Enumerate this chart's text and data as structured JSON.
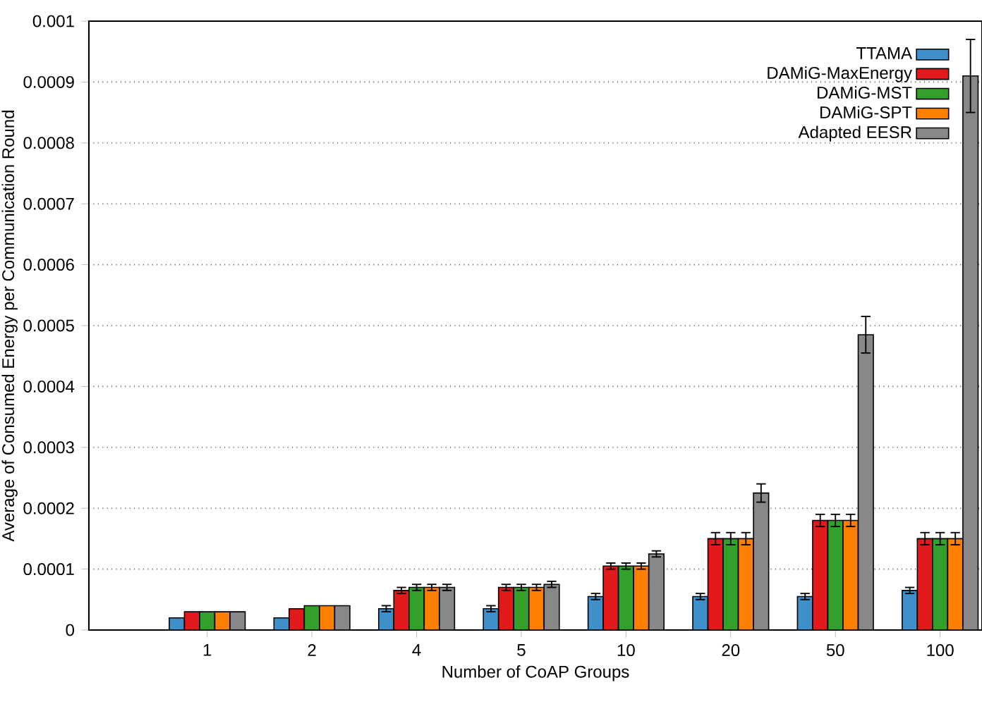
{
  "chart_data": {
    "type": "bar",
    "xlabel": "Number of CoAP Groups",
    "ylabel": "Average of Consumed Energy per Communication Round",
    "categories": [
      "1",
      "2",
      "4",
      "5",
      "10",
      "20",
      "50",
      "100"
    ],
    "ylim": [
      0,
      0.001
    ],
    "yticks": [
      0,
      0.0001,
      0.0002,
      0.0003,
      0.0004,
      0.0005,
      0.0006,
      0.0007,
      0.0008,
      0.0009,
      0.001
    ],
    "grid": "y",
    "legend": "top right",
    "series": [
      {
        "name": "TTAMA",
        "color": "#3f8fcb",
        "values": [
          2e-05,
          2e-05,
          3.5e-05,
          3.5e-05,
          5.5e-05,
          5.5e-05,
          5.5e-05,
          6.5e-05
        ],
        "errors": [
          null,
          null,
          5e-06,
          5e-06,
          5e-06,
          5e-06,
          5e-06,
          5e-06
        ]
      },
      {
        "name": "DAMiG-MaxEnergy",
        "color": "#e31a1c",
        "values": [
          3e-05,
          3.5e-05,
          6.5e-05,
          7e-05,
          0.000105,
          0.00015,
          0.00018,
          0.00015
        ],
        "errors": [
          null,
          null,
          5e-06,
          5e-06,
          5e-06,
          1e-05,
          1e-05,
          1e-05
        ]
      },
      {
        "name": "DAMiG-MST",
        "color": "#33a02c",
        "values": [
          3e-05,
          4e-05,
          7e-05,
          7e-05,
          0.000105,
          0.00015,
          0.00018,
          0.00015
        ],
        "errors": [
          null,
          null,
          5e-06,
          5e-06,
          5e-06,
          1e-05,
          1e-05,
          1e-05
        ]
      },
      {
        "name": "DAMiG-SPT",
        "color": "#ff7f00",
        "values": [
          3e-05,
          4e-05,
          7e-05,
          7e-05,
          0.000105,
          0.00015,
          0.00018,
          0.00015
        ],
        "errors": [
          null,
          null,
          5e-06,
          5e-06,
          5e-06,
          1e-05,
          1e-05,
          1e-05
        ]
      },
      {
        "name": "Adapted EESR",
        "color": "#888888",
        "values": [
          3e-05,
          4e-05,
          7e-05,
          7.5e-05,
          0.000125,
          0.000225,
          0.000485,
          0.00091
        ],
        "errors": [
          null,
          null,
          5e-06,
          5e-06,
          5e-06,
          1.5e-05,
          3e-05,
          6e-05
        ]
      }
    ]
  }
}
